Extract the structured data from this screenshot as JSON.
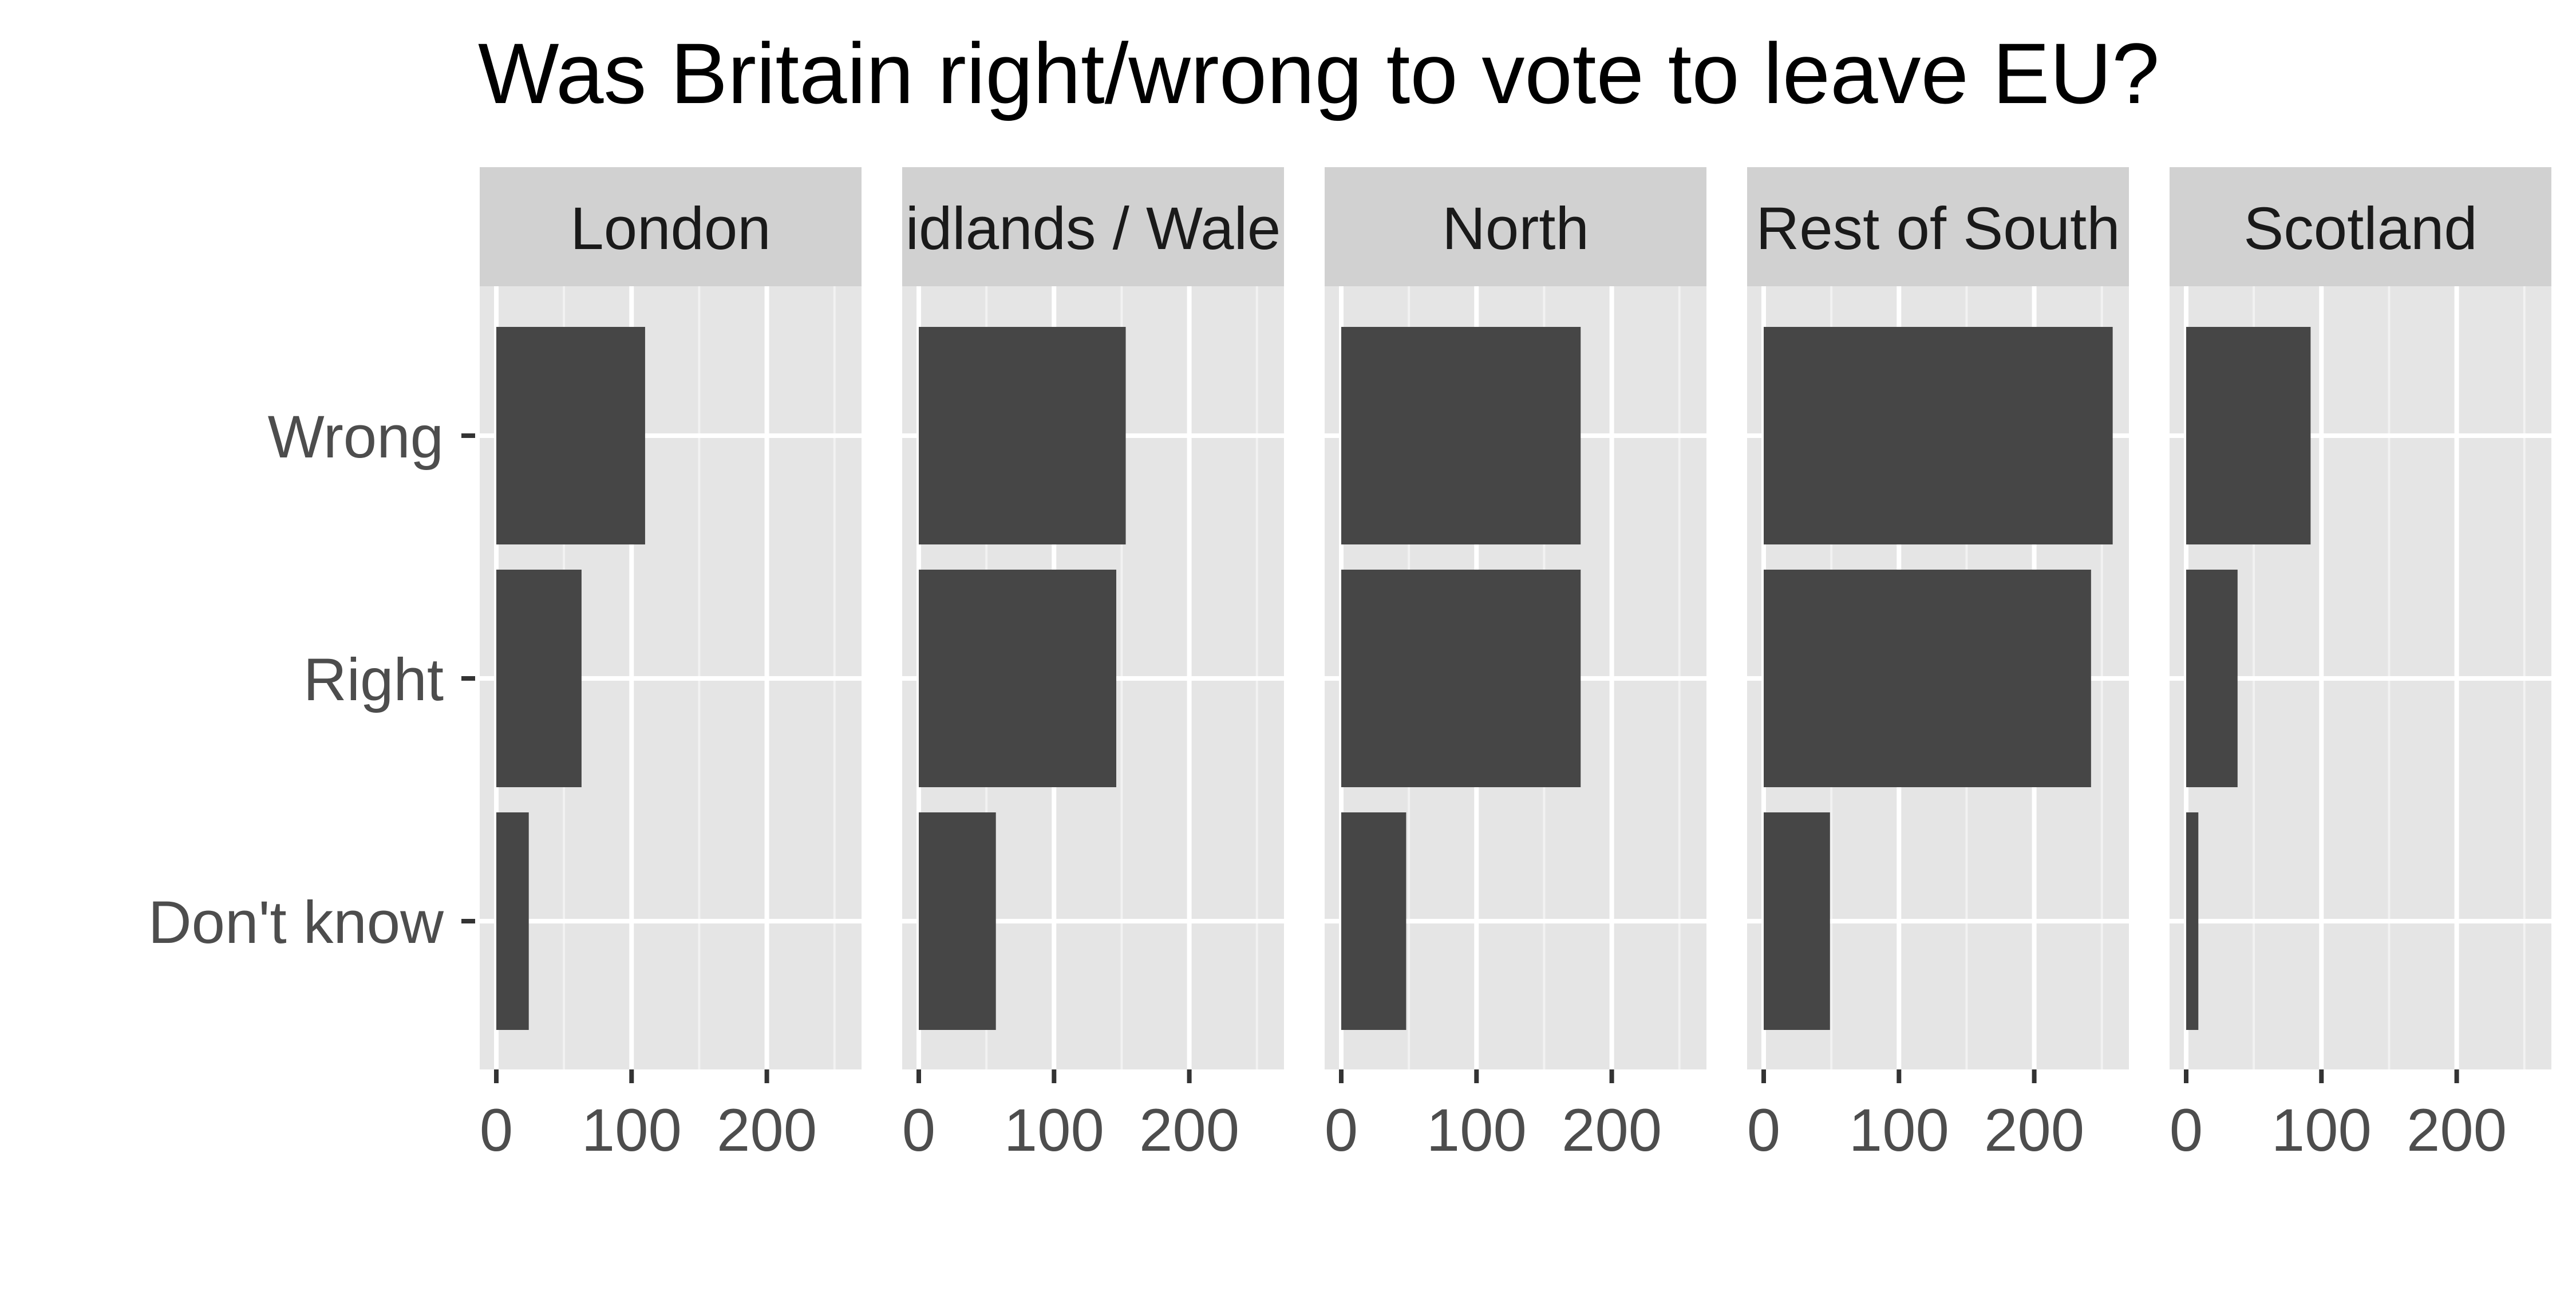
{
  "chart_data": {
    "type": "bar",
    "orientation": "horizontal",
    "title": "Was Britain right/wrong to vote to leave EU?",
    "xlabel": "",
    "ylabel": "",
    "categories": [
      "Wrong",
      "Right",
      "Don't know"
    ],
    "xlim": [
      0,
      270
    ],
    "x_ticks": [
      "0",
      "100",
      "200"
    ],
    "grid": true,
    "panel_background": "#e5e5e5",
    "strip_background": "#d1d1d1",
    "bar_color": "#464646",
    "panels": [
      {
        "name": "London",
        "strip_label": "London",
        "values": {
          "Wrong": 110,
          "Right": 63,
          "Don't know": 24
        }
      },
      {
        "name": "Midlands / Wales",
        "strip_label": "idlands / Wale",
        "values": {
          "Wrong": 153,
          "Right": 146,
          "Don't know": 57
        }
      },
      {
        "name": "North",
        "strip_label": "North",
        "values": {
          "Wrong": 177,
          "Right": 177,
          "Don't know": 48
        }
      },
      {
        "name": "Rest of South",
        "strip_label": "Rest of South",
        "values": {
          "Wrong": 258,
          "Right": 242,
          "Don't know": 49
        }
      },
      {
        "name": "Scotland",
        "strip_label": "Scotland",
        "values": {
          "Wrong": 92,
          "Right": 38,
          "Don't know": 9
        }
      }
    ]
  }
}
